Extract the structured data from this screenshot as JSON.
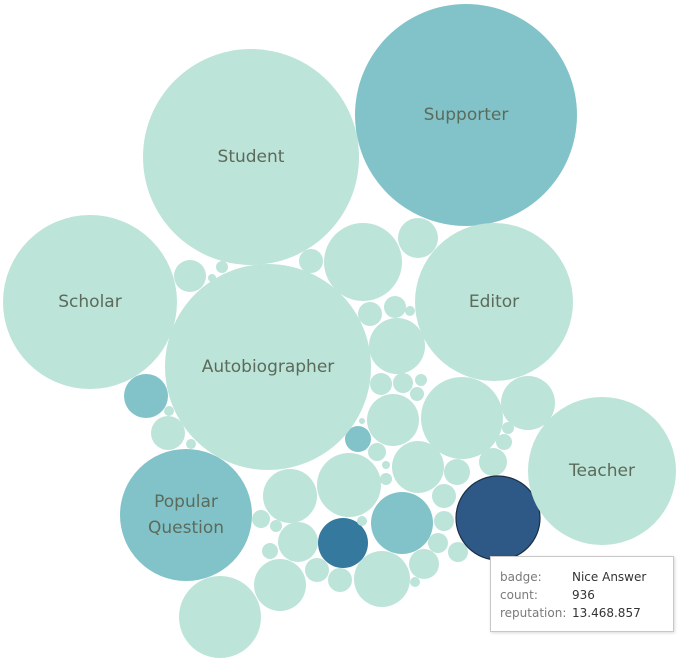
{
  "colors": {
    "light": "#bde4d9",
    "mid": "#82c3ca",
    "dark": "#35799f",
    "darkest": "#2e5986",
    "label": "#5b6b5b"
  },
  "chart_data": {
    "type": "packed-bubble",
    "labeled_bubbles": [
      {
        "badge": "Supporter",
        "color": "mid"
      },
      {
        "badge": "Student",
        "color": "light"
      },
      {
        "badge": "Scholar",
        "color": "light"
      },
      {
        "badge": "Editor",
        "color": "light"
      },
      {
        "badge": "Autobiographer",
        "color": "light"
      },
      {
        "badge": "Teacher",
        "color": "light"
      },
      {
        "badge": "Popular Question",
        "color": "mid",
        "lines": [
          "Popular",
          "Question"
        ]
      }
    ],
    "highlighted": {
      "badge": "Nice Answer",
      "count": "936",
      "reputation": "13.468.857",
      "color": "darkest"
    }
  },
  "tooltip": {
    "rows": [
      {
        "key": "badge:",
        "value": "Nice Answer"
      },
      {
        "key": "count:",
        "value": "936"
      },
      {
        "key": "reputation:",
        "value": "13.468.857"
      }
    ]
  }
}
